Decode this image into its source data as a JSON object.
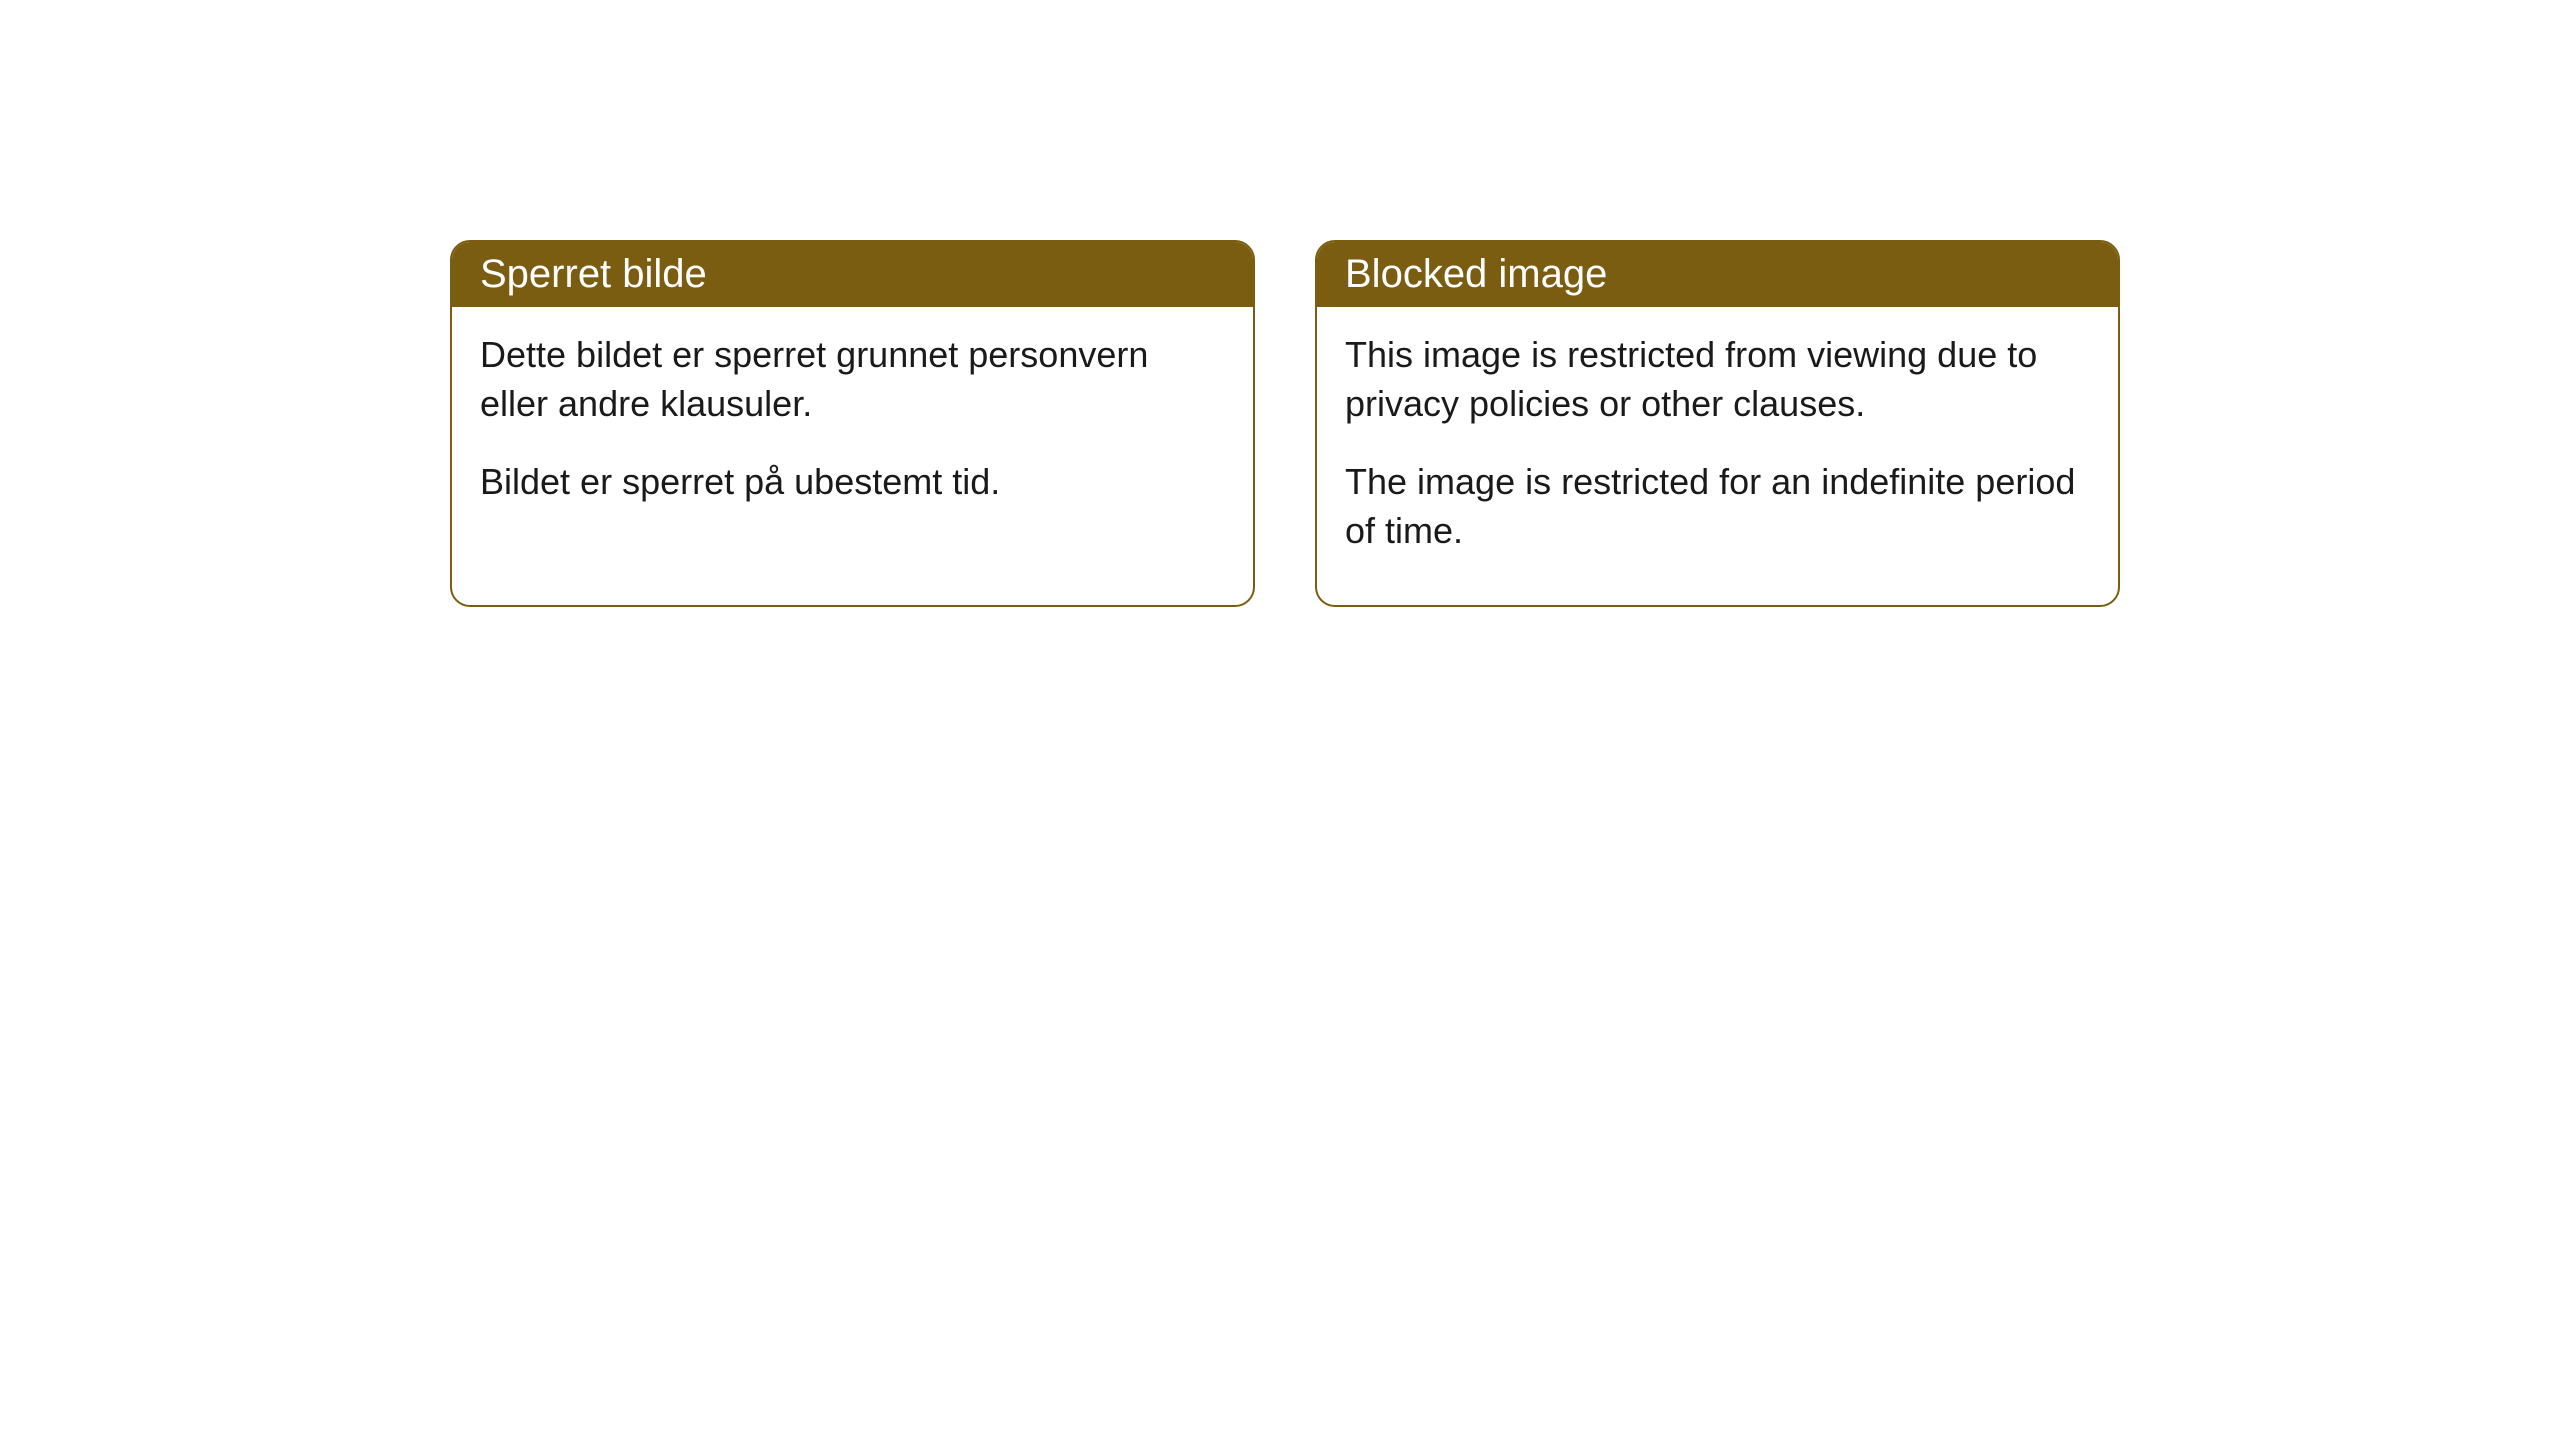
{
  "cards": [
    {
      "title": "Sperret bilde",
      "paragraph1": "Dette bildet er sperret grunnet personvern eller andre klausuler.",
      "paragraph2": "Bildet er sperret på ubestemt tid."
    },
    {
      "title": "Blocked image",
      "paragraph1": "This image is restricted from viewing due to privacy policies or other clauses.",
      "paragraph2": "The image is restricted for an indefinite period of time."
    }
  ],
  "style": {
    "header_bg_color": "#7a5d11",
    "header_text_color": "#ffffff",
    "border_color": "#7a5d11",
    "body_bg_color": "#ffffff",
    "body_text_color": "#1a1a1a",
    "border_radius": 20,
    "header_fontsize": 40,
    "body_fontsize": 36
  }
}
